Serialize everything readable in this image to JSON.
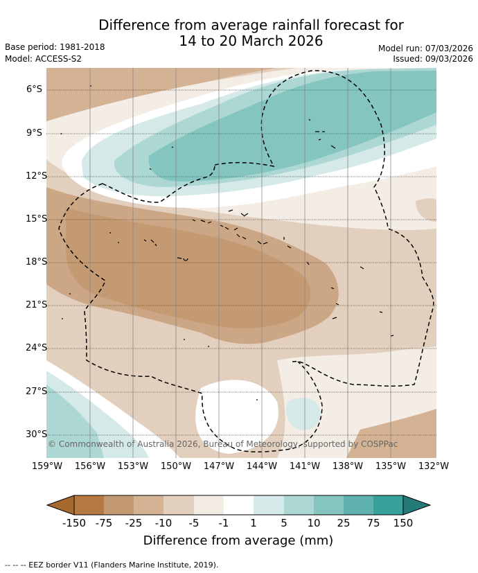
{
  "title": {
    "line1": "Difference from average rainfall forecast for",
    "line2": "14 to 20 March 2026"
  },
  "meta": {
    "base_period": "Base period: 1981-2018",
    "model": "Model: ACCESS-S2",
    "model_run": "Model run: 07/03/2026",
    "issued": "Issued: 09/03/2026"
  },
  "map": {
    "lat_labels": [
      "6°S",
      "9°S",
      "12°S",
      "15°S",
      "18°S",
      "21°S",
      "24°S",
      "27°S",
      "30°S"
    ],
    "lon_labels": [
      "159°W",
      "156°W",
      "153°W",
      "150°W",
      "147°W",
      "144°W",
      "141°W",
      "138°W",
      "135°W",
      "132°W"
    ],
    "copyright": "© Commonwealth of Australia 2026, Bureau of Meteorology, supported by COSPPac"
  },
  "colorbar": {
    "labels": [
      "-150",
      "-75",
      "-25",
      "-10",
      "-5",
      "-1",
      "1",
      "5",
      "10",
      "25",
      "75",
      "150"
    ],
    "colors": {
      "below_150": "#a66a30",
      "m150_m75": "#b57942",
      "m75_m25": "#c49a73",
      "m25_m10": "#d4b294",
      "m10_m5": "#e3cfbd",
      "m5_m1": "#f4ede6",
      "m1_1": "#ffffff",
      "p1_5": "#d5eae8",
      "p5_10": "#acd7d3",
      "p10_25": "#85c5c0",
      "p25_75": "#5eb1ad",
      "p75_150": "#38a09a",
      "above_150": "#237a77"
    },
    "title": "Difference from average (mm)"
  },
  "footer": "-- -- -- EEZ border V11 (Flanders Marine Institute, 2019)."
}
